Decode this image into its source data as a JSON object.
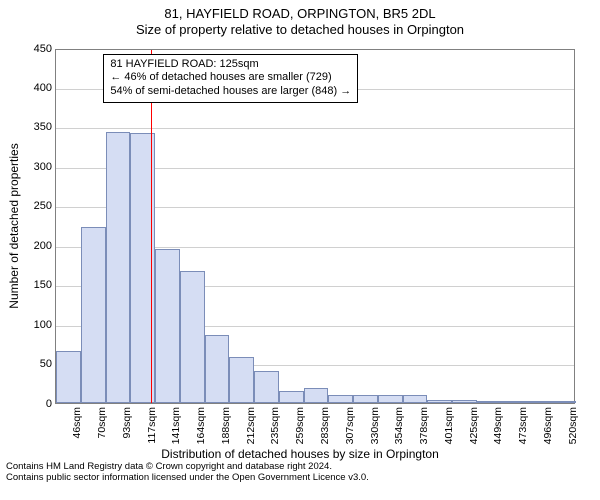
{
  "title": {
    "line1": "81, HAYFIELD ROAD, ORPINGTON, BR5 2DL",
    "line2": "Size of property relative to detached houses in Orpington",
    "fontsize": 13,
    "color": "#000000"
  },
  "chart": {
    "type": "histogram",
    "background_color": "#ffffff",
    "plot_border_color": "#808080",
    "grid_color": "#d0d0d0",
    "bar_fill": "#d5ddf3",
    "bar_border": "#7b8db8",
    "ylabel": "Number of detached properties",
    "xlabel": "Distribution of detached houses by size in Orpington",
    "label_fontsize": 12,
    "tick_fontsize": 11,
    "ylim": [
      0,
      450
    ],
    "ytick_step": 50,
    "yticks": [
      0,
      50,
      100,
      150,
      200,
      250,
      300,
      350,
      400,
      450
    ],
    "x_categories": [
      "46sqm",
      "70sqm",
      "93sqm",
      "117sqm",
      "141sqm",
      "164sqm",
      "188sqm",
      "212sqm",
      "235sqm",
      "259sqm",
      "283sqm",
      "307sqm",
      "330sqm",
      "354sqm",
      "378sqm",
      "401sqm",
      "425sqm",
      "449sqm",
      "473sqm",
      "496sqm",
      "520sqm"
    ],
    "values": [
      65,
      223,
      343,
      342,
      195,
      167,
      85,
      58,
      40,
      15,
      18,
      10,
      10,
      10,
      10,
      3,
      3,
      2,
      0,
      1,
      2
    ],
    "marker": {
      "position_category_index": 3.35,
      "color": "#ff0000"
    },
    "annotation": {
      "lines": [
        "81 HAYFIELD ROAD: 125sqm",
        "← 46% of detached houses are smaller (729)",
        "54% of semi-detached houses are larger (848) →"
      ],
      "border_color": "#000000",
      "background": "#ffffff",
      "fontsize": 11
    }
  },
  "footer": {
    "line1": "Contains HM Land Registry data © Crown copyright and database right 2024.",
    "line2": "Contains public sector information licensed under the Open Government Licence v3.0.",
    "fontsize": 9.5
  }
}
